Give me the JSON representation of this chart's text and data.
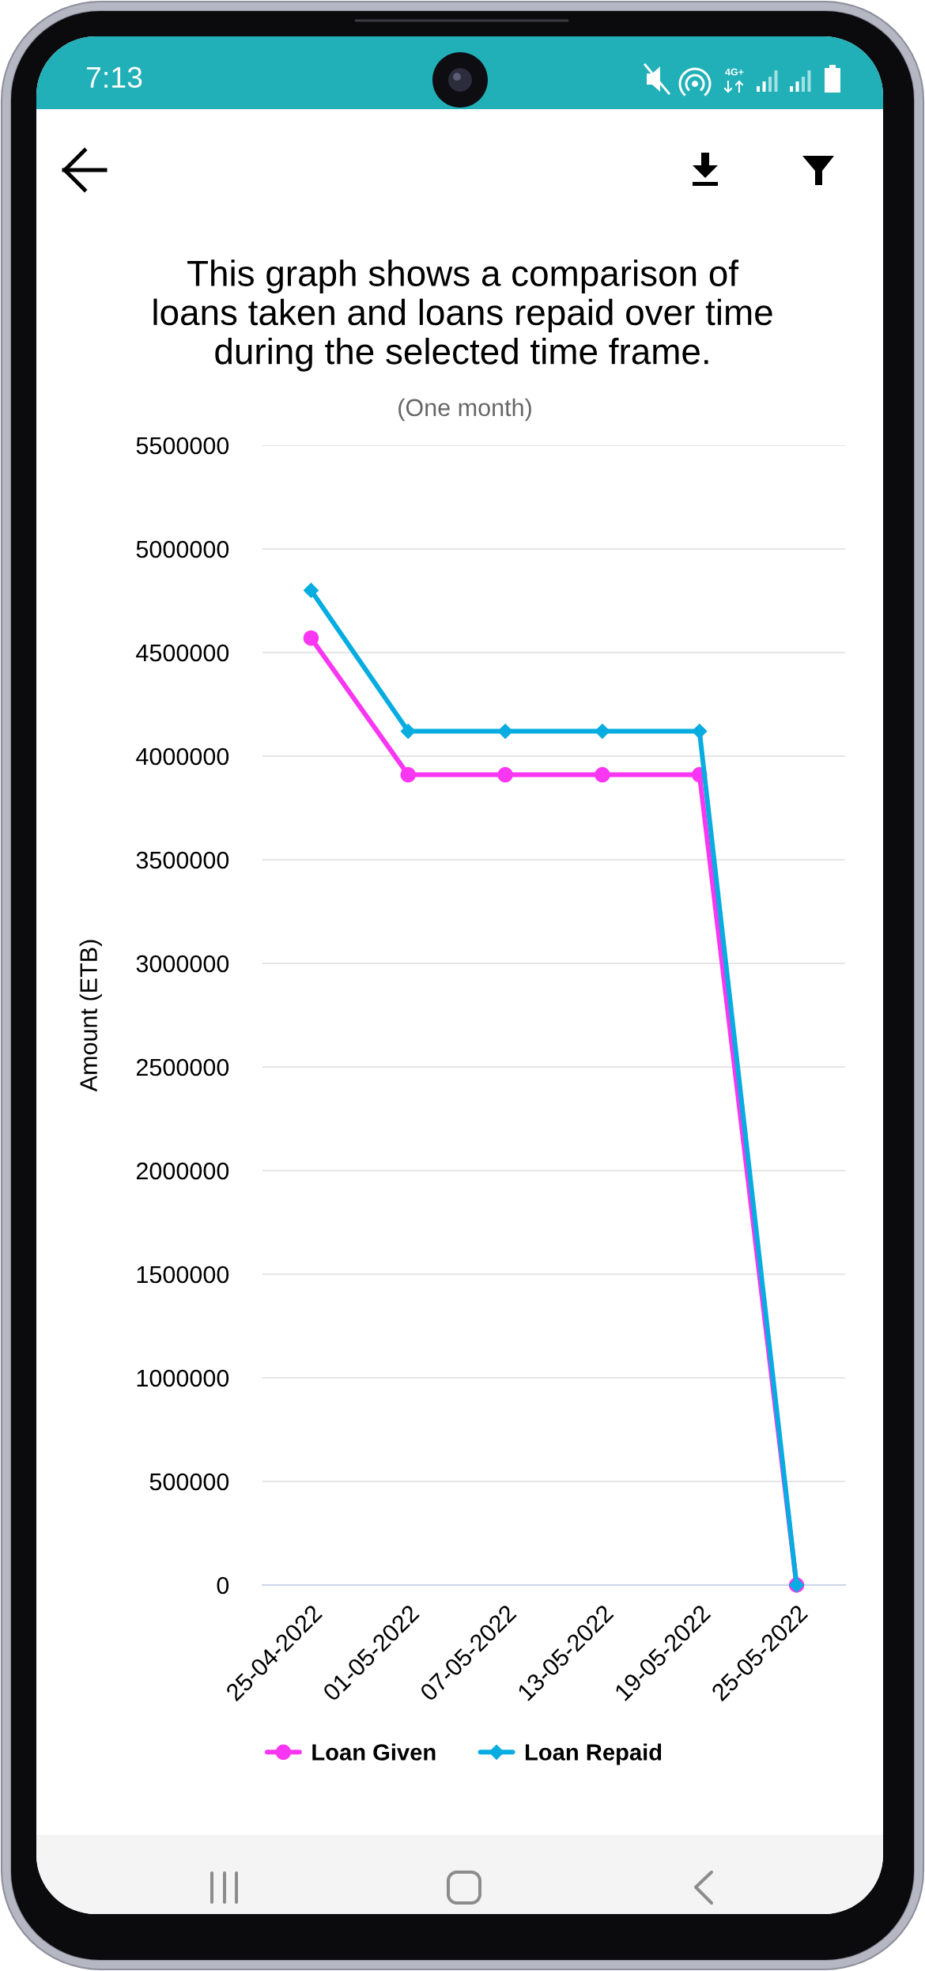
{
  "chart_data": {
    "type": "line",
    "title": "This graph shows a comparison of\nloans taken and loans repaid over time\nduring the selected time frame.",
    "subtitle": "(One month)",
    "ylabel": "Amount (ETB)",
    "categories": [
      "25-04-2022",
      "01-05-2022",
      "07-05-2022",
      "13-05-2022",
      "19-05-2022",
      "25-05-2022"
    ],
    "series": [
      {
        "name": "Loan Given",
        "color": "#f936f2",
        "marker": "circle",
        "values": [
          4570000,
          3910000,
          3910000,
          3910000,
          3910000,
          0
        ]
      },
      {
        "name": "Loan Repaid",
        "color": "#07ace0",
        "marker": "diamond",
        "values": [
          4800000,
          4120000,
          4120000,
          4120000,
          4120000,
          0
        ]
      }
    ],
    "ylim": [
      0,
      5500000
    ],
    "yticks": [
      0,
      500000,
      1000000,
      1500000,
      2000000,
      2500000,
      3000000,
      3500000,
      4000000,
      4500000,
      5000000,
      5500000
    ],
    "grid": "y",
    "legend": "bottom",
    "annotations": [
      "7:13",
      "4G+"
    ]
  }
}
